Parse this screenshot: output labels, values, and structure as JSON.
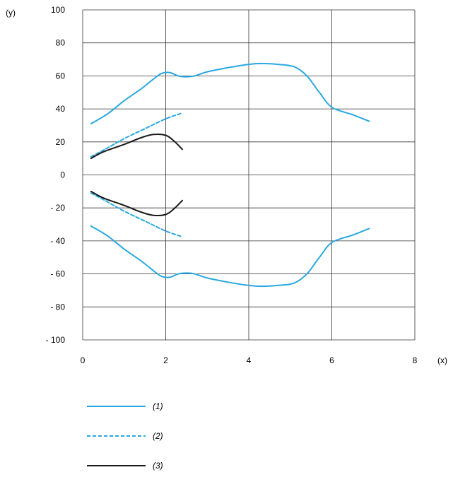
{
  "chart_data": {
    "type": "line",
    "xlabel": "(x)",
    "ylabel": "(y)",
    "xlim": [
      0,
      8
    ],
    "ylim": [
      -100,
      100
    ],
    "x_ticks": [
      "0",
      "2",
      "4",
      "6",
      "8"
    ],
    "y_ticks": [
      "100",
      "80",
      "60",
      "40",
      "20",
      "0",
      "- 20",
      "- 40",
      "- 60",
      "- 80",
      "- 100"
    ],
    "grid": true,
    "legend_position": "bottom-left",
    "series": [
      {
        "name": "(1)",
        "color": "#29a8e0",
        "dash": "solid",
        "branches": [
          [
            [
              0.2,
              31
            ],
            [
              0.6,
              37
            ],
            [
              1.0,
              45
            ],
            [
              1.4,
              52
            ],
            [
              1.7,
              58
            ],
            [
              1.9,
              61.5
            ],
            [
              2.1,
              62
            ],
            [
              2.3,
              60
            ],
            [
              2.5,
              59.5
            ],
            [
              2.7,
              60
            ],
            [
              3.0,
              62.5
            ],
            [
              3.5,
              65
            ],
            [
              4.0,
              67
            ],
            [
              4.3,
              67.5
            ],
            [
              4.7,
              67
            ],
            [
              5.1,
              65.5
            ],
            [
              5.4,
              60
            ],
            [
              5.7,
              50
            ],
            [
              6.0,
              41
            ],
            [
              6.5,
              36.5
            ],
            [
              6.9,
              32.5
            ]
          ],
          [
            [
              0.2,
              -31
            ],
            [
              0.6,
              -37
            ],
            [
              1.0,
              -45
            ],
            [
              1.4,
              -52
            ],
            [
              1.7,
              -58
            ],
            [
              1.9,
              -61.5
            ],
            [
              2.1,
              -62
            ],
            [
              2.3,
              -60
            ],
            [
              2.5,
              -59.5
            ],
            [
              2.7,
              -60
            ],
            [
              3.0,
              -62.5
            ],
            [
              3.5,
              -65
            ],
            [
              4.0,
              -67
            ],
            [
              4.3,
              -67.5
            ],
            [
              4.7,
              -67
            ],
            [
              5.1,
              -65.5
            ],
            [
              5.4,
              -60
            ],
            [
              5.7,
              -50
            ],
            [
              6.0,
              -41
            ],
            [
              6.5,
              -36.5
            ],
            [
              6.9,
              -32.5
            ]
          ]
        ]
      },
      {
        "name": "(2)",
        "color": "#29a8e0",
        "dash": "dashed",
        "branches": [
          [
            [
              0.2,
              11
            ],
            [
              0.5,
              15
            ],
            [
              1.0,
              22
            ],
            [
              1.5,
              28
            ],
            [
              2.0,
              34
            ],
            [
              2.4,
              37.5
            ]
          ],
          [
            [
              0.2,
              -11
            ],
            [
              0.5,
              -15
            ],
            [
              1.0,
              -22
            ],
            [
              1.5,
              -28
            ],
            [
              2.0,
              -34
            ],
            [
              2.4,
              -37.5
            ]
          ]
        ]
      },
      {
        "name": "(3)",
        "color": "#1a1a1a",
        "dash": "solid",
        "branches": [
          [
            [
              0.2,
              10
            ],
            [
              0.5,
              14
            ],
            [
              1.0,
              18.5
            ],
            [
              1.4,
              22.5
            ],
            [
              1.7,
              24.5
            ],
            [
              2.0,
              24
            ],
            [
              2.2,
              20.5
            ],
            [
              2.4,
              15.5
            ]
          ],
          [
            [
              0.2,
              -10
            ],
            [
              0.5,
              -14
            ],
            [
              1.0,
              -18.5
            ],
            [
              1.4,
              -22.5
            ],
            [
              1.7,
              -24.5
            ],
            [
              2.0,
              -24
            ],
            [
              2.2,
              -20.5
            ],
            [
              2.4,
              -15.5
            ]
          ]
        ]
      }
    ]
  }
}
